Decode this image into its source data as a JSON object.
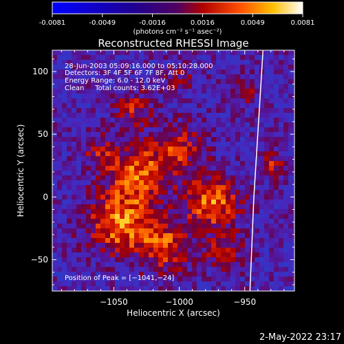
{
  "colorbar": {
    "ticks": [
      "-0.0081",
      "-0.0049",
      "-0.0016",
      "0.0016",
      "0.0049",
      "0.0081"
    ],
    "unit_label": "(photons cm⁻² s⁻¹ asec⁻²)"
  },
  "chart_data": {
    "type": "heatmap",
    "title": "Reconstructed RHESSI Image",
    "xlabel": "Heliocentric X (arcsec)",
    "ylabel": "Heliocentric Y (arcsec)",
    "xlim": [
      -1097,
      -912
    ],
    "ylim": [
      -75,
      117
    ],
    "xticks": [
      -1050,
      -1000,
      -950
    ],
    "yticks": [
      -50,
      0,
      50,
      100
    ],
    "xtick_labels": [
      "−1050",
      "−1000",
      "−950"
    ],
    "ytick_labels": [
      "−50",
      "0",
      "50",
      "100"
    ],
    "colorscale_range": [
      -0.0081,
      0.0081
    ],
    "info_lines": [
      "28-Jun-2003 05:09:16.000 to 05:10:28.000",
      "Detectors: 3F 4F 5F 6F 7F 8F, Att 0",
      "Energy Range: 6.0 - 12.0 keV",
      "Clean     Total counts: 3.62E+03"
    ],
    "peak_label": "Position of Peak = [−1041,−24]",
    "peak_position": [
      -1041,
      -24
    ],
    "limb_x_at_y": [
      [
        -936,
        117
      ],
      [
        -940,
        50
      ],
      [
        -943,
        0
      ],
      [
        -945,
        -50
      ],
      [
        -946,
        -75
      ]
    ]
  },
  "timestamp": "2-May-2022 23:17"
}
